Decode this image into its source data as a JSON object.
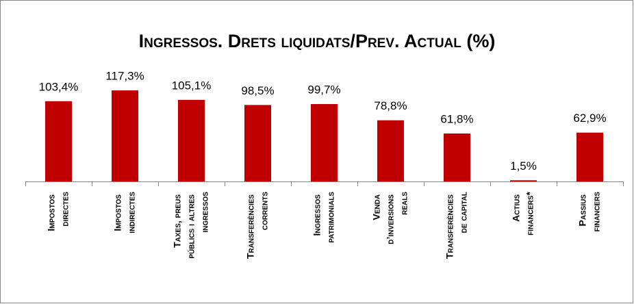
{
  "chart_data": {
    "type": "bar",
    "title": "Ingressos. Drets liquidats/Prev. Actual (%)",
    "categories": [
      "Impostos directes",
      "Impostos indirectes",
      "Taxes, preus públics i altres ingressos",
      "Transferències corrents",
      "Ingressos patrimonials",
      "Venda d’inversions reals",
      "Transferències de capital",
      "Actius financers*",
      "Passius financers"
    ],
    "values": [
      103.4,
      117.3,
      105.1,
      98.5,
      99.7,
      78.8,
      61.8,
      1.5,
      62.9
    ],
    "value_labels": [
      "103,4%",
      "117,3%",
      "105,1%",
      "98,5%",
      "99,7%",
      "78,8%",
      "61,8%",
      "1,5%",
      "62,9%"
    ],
    "color": "#c00000",
    "ylim": [
      0,
      140
    ]
  }
}
